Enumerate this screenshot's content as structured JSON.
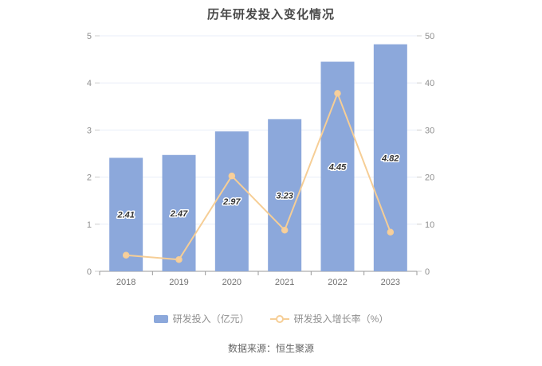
{
  "chart_data": {
    "type": "bar",
    "title": "历年研发投入变化情况",
    "categories": [
      "2018",
      "2019",
      "2020",
      "2021",
      "2022",
      "2023"
    ],
    "series": [
      {
        "name": "研发投入（亿元）",
        "type": "bar",
        "axis": "left",
        "color": "#8CA8DB",
        "values": [
          2.41,
          2.47,
          2.97,
          3.23,
          4.45,
          4.82
        ],
        "labels": [
          "2.41",
          "2.47",
          "2.97",
          "3.23",
          "4.45",
          "4.82"
        ]
      },
      {
        "name": "研发投入增长率（%）",
        "type": "line",
        "axis": "right",
        "color": "#F6CE96",
        "marker_fill": "#F7CF9D",
        "values": [
          3.43,
          2.49,
          20.24,
          8.75,
          37.77,
          8.31
        ]
      }
    ],
    "left_axis": {
      "min": 0,
      "max": 5,
      "ticks": [
        0,
        1,
        2,
        3,
        4,
        5
      ]
    },
    "right_axis": {
      "min": 0,
      "max": 50,
      "ticks": [
        0,
        10,
        20,
        30,
        40,
        50
      ]
    },
    "grid": true,
    "legend_position": "bottom"
  },
  "legend": {
    "bar_label": "研发投入（亿元）",
    "line_label": "研发投入增长率（%）"
  },
  "footer": {
    "source": "数据来源：恒生聚源"
  },
  "colors": {
    "bar": "#8CA8DB",
    "line": "#F6CE96",
    "grid": "#E8EEF8",
    "axis": "#999999",
    "tick": "#cccccc",
    "title": "#4a4a4a",
    "bar_value_text": "#333333"
  }
}
